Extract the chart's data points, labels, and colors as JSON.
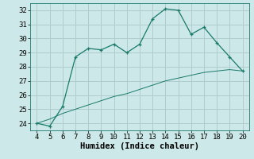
{
  "xlabel": "Humidex (Indice chaleur)",
  "ylabel": "",
  "x_data": [
    4,
    5,
    6,
    7,
    8,
    9,
    10,
    11,
    12,
    13,
    14,
    15,
    16,
    17,
    18,
    19,
    20
  ],
  "y_main": [
    24.0,
    23.8,
    25.2,
    28.7,
    29.3,
    29.2,
    29.6,
    29.0,
    29.6,
    31.4,
    32.1,
    32.0,
    30.3,
    30.8,
    29.7,
    28.7,
    27.7
  ],
  "y_ref": [
    24.0,
    24.3,
    24.7,
    25.0,
    25.3,
    25.6,
    25.9,
    26.1,
    26.4,
    26.7,
    27.0,
    27.2,
    27.4,
    27.6,
    27.7,
    27.8,
    27.7
  ],
  "line_color": "#1a7a6a",
  "bg_color": "#cce8e8",
  "grid_color": "#b0cccc",
  "ylim": [
    23.5,
    32.5
  ],
  "xlim": [
    3.5,
    20.5
  ],
  "yticks": [
    24,
    25,
    26,
    27,
    28,
    29,
    30,
    31,
    32
  ],
  "xticks": [
    4,
    5,
    6,
    7,
    8,
    9,
    10,
    11,
    12,
    13,
    14,
    15,
    16,
    17,
    18,
    19,
    20
  ],
  "label_fontsize": 7.5,
  "tick_fontsize": 6.5
}
